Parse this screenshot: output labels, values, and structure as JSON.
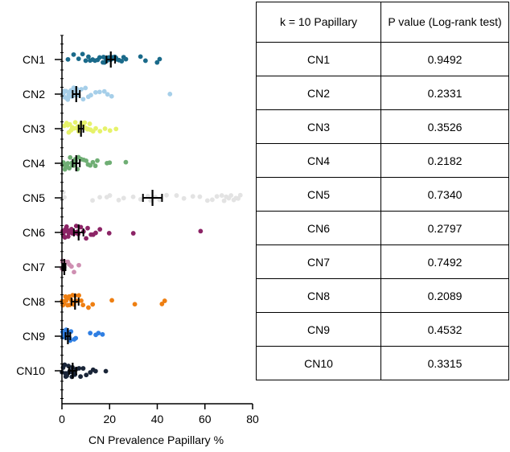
{
  "chart_data": [
    {
      "type": "scatter",
      "xlabel": "CN Prevalence Papillary %",
      "ylabel": "",
      "xlim": [
        0,
        80
      ],
      "xticks": [
        0,
        20,
        40,
        60,
        80
      ],
      "grid": false,
      "categories": [
        "CN1",
        "CN2",
        "CN3",
        "CN4",
        "CN5",
        "CN6",
        "CN7",
        "CN8",
        "CN9",
        "CN10"
      ],
      "colors": [
        "#1a6a8a",
        "#a6cfe9",
        "#e6f26a",
        "#6fae74",
        "#e3e3e3",
        "#8c2466",
        "#cf8fb2",
        "#ee7f12",
        "#2f7fe3",
        "#1a2538"
      ],
      "series": [
        {
          "category": "CN1",
          "mean": 20.5,
          "error": 1.8,
          "points": [
            2.5,
            5,
            7,
            8.5,
            10,
            11,
            12,
            13,
            14,
            15,
            16,
            17,
            17.5,
            18,
            18.5,
            19,
            19.5,
            20,
            20.5,
            21,
            21.5,
            22,
            22.5,
            23,
            24,
            25,
            26,
            27,
            33,
            35,
            40,
            41
          ]
        },
        {
          "category": "CN2",
          "mean": 6,
          "error": 1.5,
          "points": [
            0.3,
            0.6,
            1,
            1.3,
            1.6,
            2,
            2.3,
            2.7,
            3,
            3.4,
            3.8,
            4.2,
            4.6,
            5,
            5.5,
            6,
            6.5,
            7,
            8,
            9,
            10,
            11,
            12,
            14,
            16,
            18,
            19,
            21,
            45.5
          ]
        },
        {
          "category": "CN3",
          "mean": 8,
          "error": 1,
          "points": [
            1,
            2,
            2.5,
            3,
            3.5,
            4,
            4.5,
            5,
            5.5,
            6,
            6.5,
            7,
            7.5,
            8,
            8.5,
            9,
            9.5,
            10,
            10.5,
            11,
            11.5,
            12,
            13,
            14,
            16,
            18,
            20,
            22.5
          ]
        },
        {
          "category": "CN4",
          "mean": 6,
          "error": 1.5,
          "points": [
            0.3,
            0.8,
            1.2,
            1.6,
            2,
            2.5,
            3,
            3.5,
            4,
            4.5,
            5,
            5.5,
            6,
            6.5,
            7,
            8,
            9,
            10,
            11,
            12,
            13,
            14,
            15,
            19,
            20,
            27
          ]
        },
        {
          "category": "CN5",
          "mean": 38,
          "error": 4,
          "points": [
            0.5,
            1,
            13,
            16,
            19,
            20,
            24,
            26,
            30,
            33,
            36,
            37,
            39,
            41,
            44,
            48,
            51,
            55,
            58,
            61,
            63,
            65,
            67,
            68,
            69,
            70,
            71,
            72,
            73,
            74,
            75
          ]
        },
        {
          "category": "CN6",
          "mean": 7,
          "error": 2,
          "points": [
            0.2,
            0.5,
            0.8,
            1,
            1.3,
            1.6,
            2,
            2.3,
            2.6,
            3,
            3.3,
            3.6,
            4,
            4.5,
            5,
            5.5,
            6,
            6.5,
            7,
            8,
            9,
            10,
            11,
            12,
            13,
            14,
            16,
            20,
            30,
            58
          ]
        },
        {
          "category": "CN7",
          "mean": 1,
          "error": 0.5,
          "points": [
            0.1,
            0.2,
            0.3,
            0.4,
            0.5,
            0.6,
            0.8,
            1,
            1.2,
            1.5,
            2,
            2.5,
            3,
            4,
            5,
            7
          ]
        },
        {
          "category": "CN8",
          "mean": 5.5,
          "error": 1.5,
          "points": [
            0.2,
            0.5,
            0.8,
            1.1,
            1.5,
            1.9,
            2.3,
            2.7,
            3.1,
            3.5,
            4,
            4.5,
            5,
            5.5,
            6,
            7,
            8,
            9,
            11,
            13,
            21,
            30.5,
            42,
            43
          ]
        },
        {
          "category": "CN9",
          "mean": 2.5,
          "error": 1,
          "points": [
            0.2,
            0.4,
            0.6,
            0.8,
            1,
            1.3,
            1.6,
            2,
            2.4,
            2.8,
            3.2,
            3.6,
            4,
            5,
            6,
            12,
            14,
            15.5,
            17
          ]
        },
        {
          "category": "CN10",
          "mean": 4.5,
          "error": 1.5,
          "points": [
            0.2,
            0.5,
            0.8,
            1.1,
            1.4,
            1.7,
            2,
            2.4,
            2.8,
            3.2,
            3.6,
            4,
            4.5,
            5,
            5.5,
            6,
            7,
            8,
            9,
            10,
            12,
            13,
            14,
            18.5
          ]
        }
      ]
    },
    {
      "type": "table",
      "header": [
        "k = 10 Papillary",
        "P value (Log-rank test)"
      ],
      "rows": [
        [
          "CN1",
          "0.9492"
        ],
        [
          "CN2",
          "0.2331"
        ],
        [
          "CN3",
          "0.3526"
        ],
        [
          "CN4",
          "0.2182"
        ],
        [
          "CN5",
          "0.7340"
        ],
        [
          "CN6",
          "0.2797"
        ],
        [
          "CN7",
          "0.7492"
        ],
        [
          "CN8",
          "0.2089"
        ],
        [
          "CN9",
          "0.4532"
        ],
        [
          "CN10",
          "0.3315"
        ]
      ]
    }
  ]
}
